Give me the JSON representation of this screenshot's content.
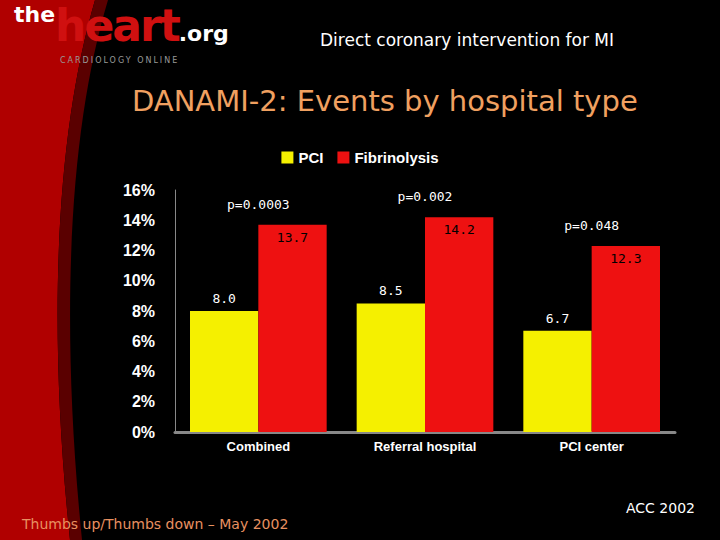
{
  "chart_data": {
    "type": "bar",
    "title": "DANAMI-2: Events by hospital type",
    "categories": [
      "Combined",
      "Referral hospital",
      "PCI center"
    ],
    "series": [
      {
        "name": "PCI",
        "color": "#f5f000",
        "values": [
          8.0,
          8.5,
          6.7
        ],
        "value_labels": [
          "8.0",
          "8.5",
          "6.7"
        ]
      },
      {
        "name": "Fibrinolysis",
        "color": "#ee1111",
        "values": [
          13.7,
          14.2,
          12.3
        ],
        "value_labels": [
          "13.7",
          "14.2",
          "12.3"
        ]
      }
    ],
    "annotations": [
      "p=0.0003",
      "p=0.002",
      "p=0.048"
    ],
    "ylim": [
      0,
      16
    ],
    "yticks": [
      {
        "value": 0,
        "label": "0%"
      },
      {
        "value": 2,
        "label": "2%"
      },
      {
        "value": 4,
        "label": "4%"
      },
      {
        "value": 6,
        "label": "6%"
      },
      {
        "value": 8,
        "label": "8%"
      },
      {
        "value": 10,
        "label": "10%"
      },
      {
        "value": 12,
        "label": "12%"
      },
      {
        "value": 14,
        "label": "14%"
      },
      {
        "value": 16,
        "label": "16%"
      }
    ],
    "grid": false,
    "legend": "top",
    "data_labels": true
  },
  "page": {
    "logo": [
      "the",
      "heart",
      ".org"
    ],
    "logo_tagline": "CARDIOLOGY ONLINE",
    "header": "Direct coronary intervention for MI",
    "footer_left": "Thumbs up/Thumbs down – May 2002",
    "footer_right": "ACC 2002"
  }
}
